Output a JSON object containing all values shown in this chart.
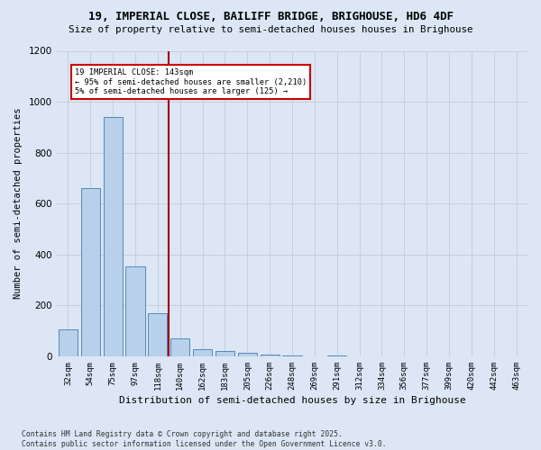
{
  "title1": "19, IMPERIAL CLOSE, BAILIFF BRIDGE, BRIGHOUSE, HD6 4DF",
  "title2": "Size of property relative to semi-detached houses houses in Brighouse",
  "xlabel": "Distribution of semi-detached houses by size in Brighouse",
  "ylabel": "Number of semi-detached properties",
  "bar_labels": [
    "32sqm",
    "54sqm",
    "75sqm",
    "97sqm",
    "118sqm",
    "140sqm",
    "162sqm",
    "183sqm",
    "205sqm",
    "226sqm",
    "248sqm",
    "269sqm",
    "291sqm",
    "312sqm",
    "334sqm",
    "356sqm",
    "377sqm",
    "399sqm",
    "420sqm",
    "442sqm",
    "463sqm"
  ],
  "bar_heights": [
    107,
    660,
    940,
    352,
    170,
    70,
    28,
    20,
    14,
    7,
    3,
    1,
    2,
    1,
    0,
    0,
    0,
    0,
    0,
    0,
    0
  ],
  "annotation_title": "19 IMPERIAL CLOSE: 143sqm",
  "annotation_line1": "← 95% of semi-detached houses are smaller (2,210)",
  "annotation_line2": "5% of semi-detached houses are larger (125) →",
  "bar_color": "#b8d0ea",
  "bar_edge_color": "#5588bb",
  "vline_color": "#990000",
  "annotation_box_color": "#ffffff",
  "annotation_box_edge": "#cc0000",
  "background_color": "#dce6f5",
  "plot_bg_color": "#dce6f5",
  "grid_color": "#c5cfdd",
  "footer1": "Contains HM Land Registry data © Crown copyright and database right 2025.",
  "footer2": "Contains public sector information licensed under the Open Government Licence v3.0.",
  "ylim": [
    0,
    1200
  ],
  "yticks": [
    0,
    200,
    400,
    600,
    800,
    1000,
    1200
  ],
  "vline_x_idx": 4.5
}
